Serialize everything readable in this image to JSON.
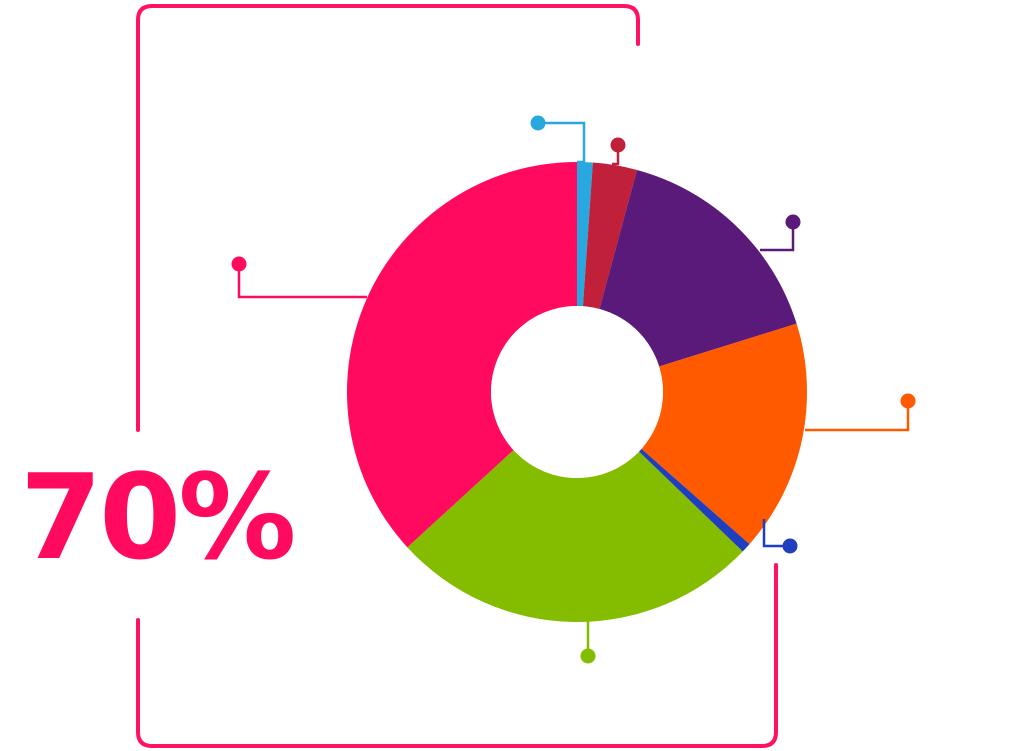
{
  "headline": {
    "value": "70%"
  },
  "colors": {
    "accent": "#ff0a5f",
    "frame": "#ff1166",
    "hole": "#ffffff"
  },
  "chart_data": {
    "type": "pie",
    "style": "donut",
    "legend": "none",
    "slices": [
      {
        "value": 1.1,
        "color": "#29a8e0"
      },
      {
        "value": 3.1,
        "color": "#c0203a"
      },
      {
        "value": 16.0,
        "color": "#5a1a7a"
      },
      {
        "value": 16.3,
        "color": "#ff5a00"
      },
      {
        "value": 0.7,
        "color": "#1f3fbf"
      },
      {
        "value": 26.0,
        "color": "#84bd00"
      },
      {
        "value": 36.8,
        "color": "#ff0a5f"
      }
    ]
  }
}
